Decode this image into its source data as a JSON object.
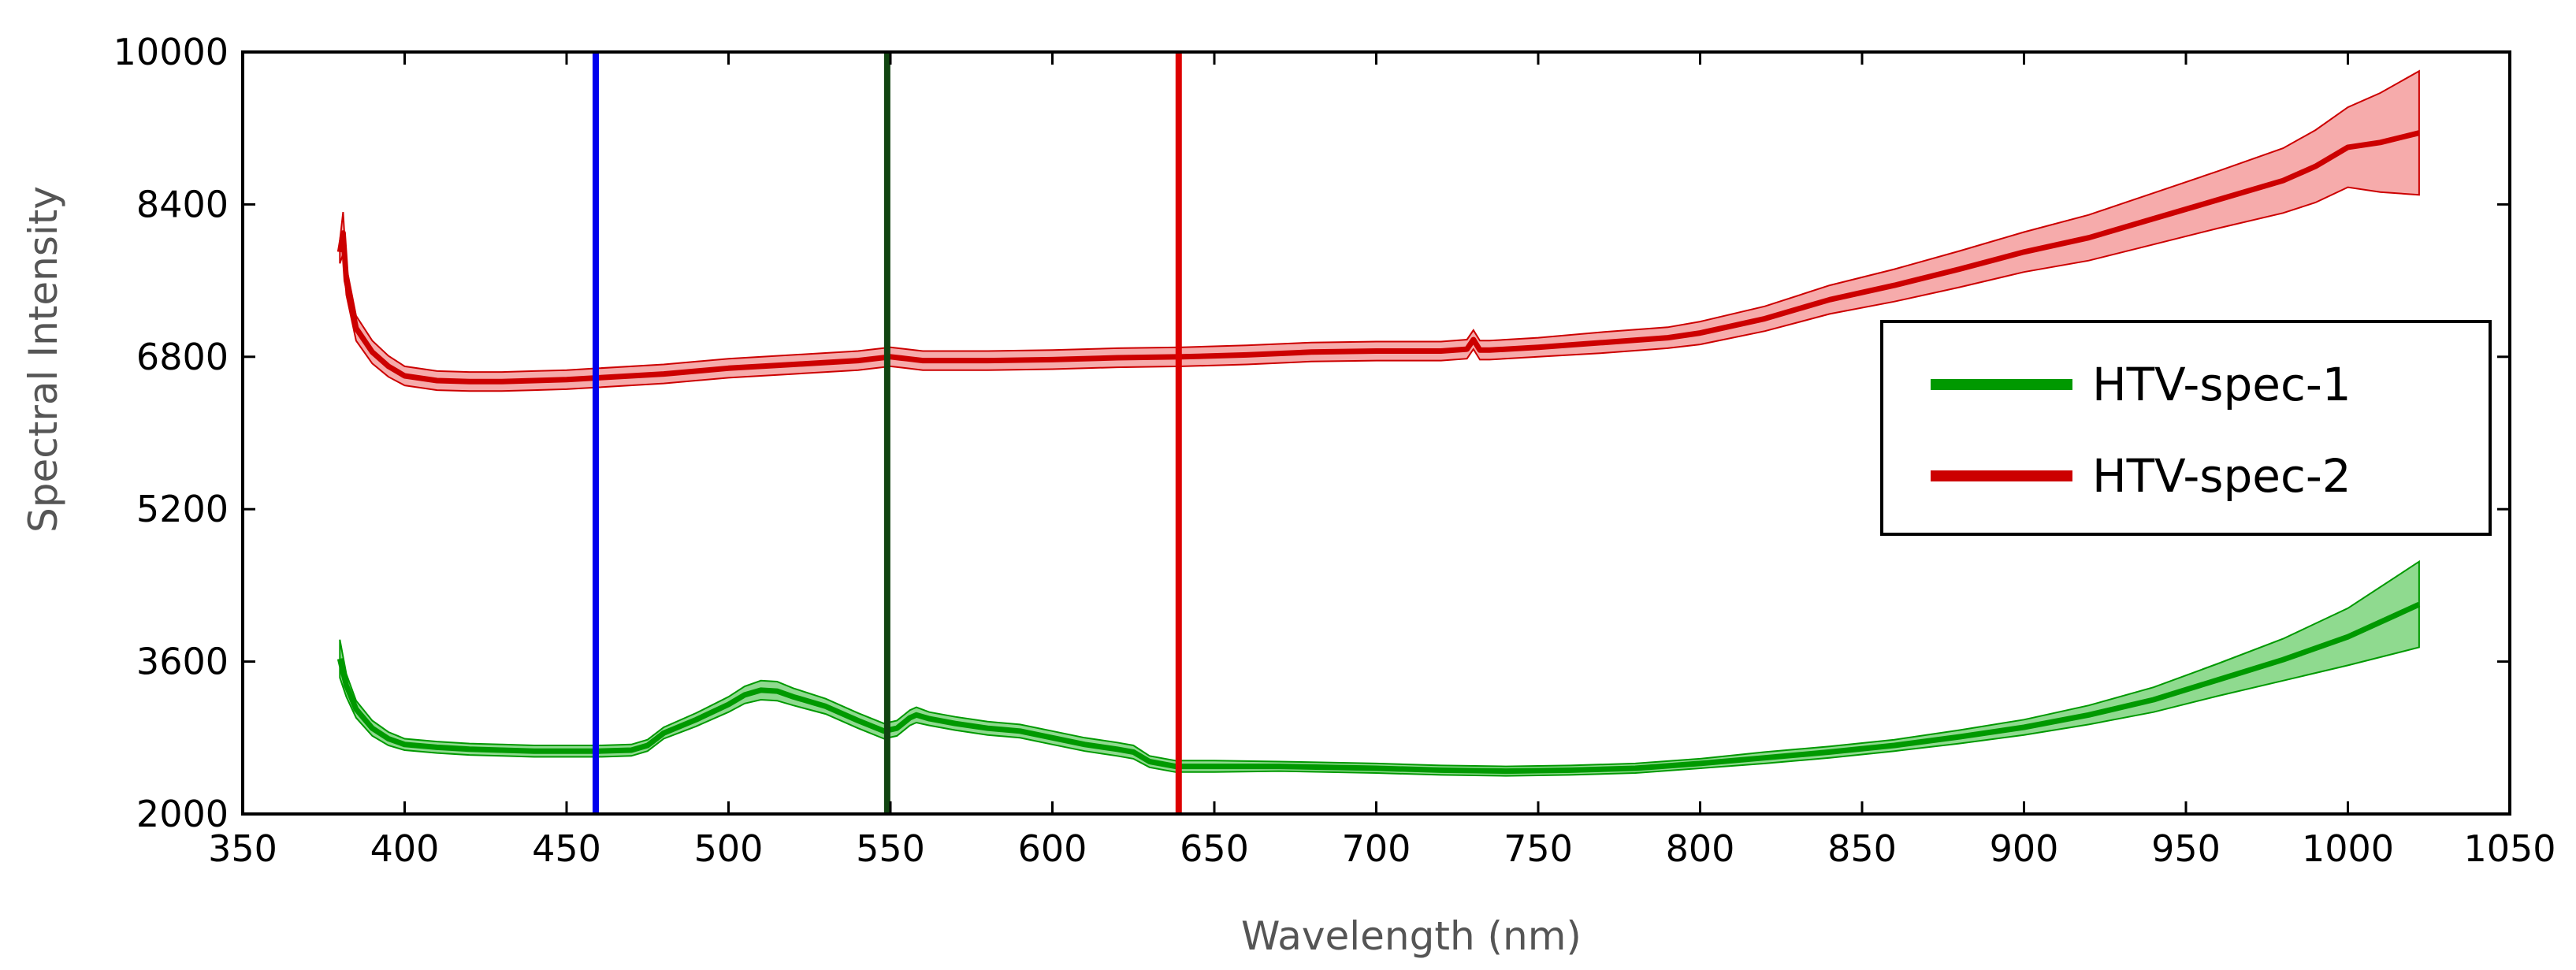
{
  "chart_data": {
    "type": "line",
    "xlabel": "Wavelength (nm)",
    "ylabel": "Spectral Intensity",
    "xlim": [
      350,
      1050
    ],
    "ylim": [
      2000,
      10000
    ],
    "xticks": [
      350,
      400,
      450,
      500,
      550,
      600,
      650,
      700,
      750,
      800,
      850,
      900,
      950,
      1000,
      1050
    ],
    "yticks": [
      2000,
      3600,
      5200,
      6800,
      8400,
      10000
    ],
    "grid": false,
    "legend_position": "center-right",
    "vertical_lines": [
      {
        "x": 459,
        "color": "#0000ee"
      },
      {
        "x": 549,
        "color": "#114411"
      },
      {
        "x": 639,
        "color": "#dd0000"
      }
    ],
    "series": [
      {
        "name": "HTV-spec-1",
        "color": "#009900",
        "fill": "#33bb33",
        "x": [
          380,
          382,
          385,
          390,
          395,
          400,
          410,
          420,
          430,
          440,
          450,
          460,
          470,
          475,
          480,
          490,
          500,
          505,
          510,
          515,
          520,
          530,
          540,
          548,
          552,
          556,
          558,
          562,
          570,
          580,
          590,
          600,
          610,
          620,
          625,
          630,
          638,
          650,
          670,
          700,
          720,
          740,
          760,
          780,
          800,
          820,
          840,
          860,
          880,
          900,
          920,
          940,
          960,
          980,
          1000,
          1022
        ],
        "values": [
          3630,
          3350,
          3100,
          2900,
          2790,
          2730,
          2700,
          2680,
          2670,
          2660,
          2660,
          2660,
          2670,
          2720,
          2850,
          2990,
          3150,
          3250,
          3300,
          3290,
          3230,
          3130,
          2980,
          2870,
          2900,
          3010,
          3040,
          3000,
          2950,
          2900,
          2870,
          2800,
          2730,
          2680,
          2650,
          2550,
          2500,
          2500,
          2500,
          2480,
          2460,
          2450,
          2460,
          2480,
          2530,
          2590,
          2650,
          2720,
          2810,
          2910,
          3040,
          3200,
          3410,
          3620,
          3860,
          4200
        ],
        "band": [
          200,
          120,
          90,
          80,
          70,
          60,
          60,
          60,
          60,
          60,
          60,
          60,
          60,
          60,
          60,
          70,
          80,
          90,
          100,
          100,
          90,
          80,
          80,
          80,
          80,
          80,
          80,
          70,
          70,
          70,
          70,
          70,
          70,
          70,
          70,
          60,
          60,
          60,
          50,
          50,
          50,
          50,
          50,
          50,
          50,
          60,
          60,
          60,
          70,
          80,
          100,
          130,
          170,
          220,
          300,
          450
        ]
      },
      {
        "name": "HTV-spec-2",
        "color": "#cc0000",
        "fill": "#ee6666",
        "x": [
          380,
          381,
          382,
          385,
          390,
          395,
          400,
          410,
          420,
          430,
          440,
          450,
          460,
          480,
          500,
          520,
          540,
          550,
          555,
          560,
          580,
          600,
          620,
          640,
          660,
          680,
          700,
          720,
          728,
          730,
          732,
          735,
          750,
          770,
          790,
          800,
          820,
          840,
          860,
          880,
          900,
          920,
          940,
          960,
          980,
          990,
          1000,
          1010,
          1022
        ],
        "values": [
          7900,
          8100,
          7600,
          7100,
          6850,
          6700,
          6600,
          6550,
          6540,
          6540,
          6550,
          6560,
          6580,
          6620,
          6680,
          6720,
          6760,
          6800,
          6780,
          6760,
          6760,
          6770,
          6790,
          6800,
          6820,
          6850,
          6860,
          6860,
          6880,
          6980,
          6870,
          6870,
          6900,
          6950,
          7000,
          7050,
          7200,
          7400,
          7550,
          7720,
          7900,
          8050,
          8250,
          8450,
          8650,
          8800,
          9000,
          9050,
          9150
        ],
        "band": [
          120,
          220,
          150,
          130,
          120,
          110,
          100,
          100,
          100,
          100,
          100,
          100,
          100,
          100,
          100,
          100,
          100,
          100,
          100,
          100,
          100,
          100,
          100,
          100,
          100,
          100,
          100,
          100,
          100,
          100,
          100,
          100,
          100,
          110,
          110,
          120,
          130,
          150,
          170,
          190,
          210,
          240,
          270,
          300,
          340,
          380,
          420,
          520,
          650
        ]
      }
    ]
  }
}
